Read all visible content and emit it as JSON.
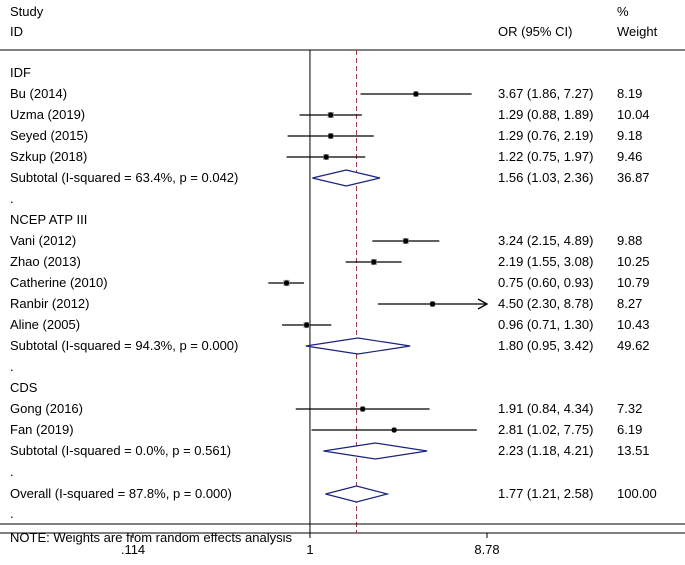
{
  "chart_data": {
    "type": "forest",
    "header": {
      "study_line1": "Study",
      "study_line2": "ID",
      "or_header": "OR (95% CI)",
      "weight_line1": "%",
      "weight_line2": "Weight"
    },
    "x_scale": "log",
    "xlim": [
      0.09,
      12.5
    ],
    "null_line": 1,
    "overall_line": 1.77,
    "x_ticks": [
      {
        "value": 0.114,
        "label": ".114"
      },
      {
        "value": 1,
        "label": "1"
      },
      {
        "value": 8.78,
        "label": "8.78"
      }
    ],
    "rows": [
      {
        "kind": "group",
        "label": "IDF"
      },
      {
        "kind": "study",
        "label": "Bu (2014)",
        "or": 3.67,
        "lo": 1.86,
        "hi": 7.27,
        "weight": 8.19,
        "ci_text": "3.67 (1.86, 7.27)",
        "weight_text": "8.19"
      },
      {
        "kind": "study",
        "label": "Uzma (2019)",
        "or": 1.29,
        "lo": 0.88,
        "hi": 1.89,
        "weight": 10.04,
        "ci_text": "1.29 (0.88, 1.89)",
        "weight_text": "10.04"
      },
      {
        "kind": "study",
        "label": "Seyed (2015)",
        "or": 1.29,
        "lo": 0.76,
        "hi": 2.19,
        "weight": 9.18,
        "ci_text": "1.29 (0.76, 2.19)",
        "weight_text": "9.18"
      },
      {
        "kind": "study",
        "label": "Szkup (2018)",
        "or": 1.22,
        "lo": 0.75,
        "hi": 1.97,
        "weight": 9.46,
        "ci_text": "1.22 (0.75, 1.97)",
        "weight_text": "9.46"
      },
      {
        "kind": "subtotal",
        "label": "Subtotal  (I-squared = 63.4%, p = 0.042)",
        "or": 1.56,
        "lo": 1.03,
        "hi": 2.36,
        "ci_text": "1.56 (1.03, 2.36)",
        "weight_text": "36.87"
      },
      {
        "kind": "dot",
        "label": "."
      },
      {
        "kind": "group",
        "label": "NCEP ATP III"
      },
      {
        "kind": "study",
        "label": "Vani (2012)",
        "or": 3.24,
        "lo": 2.15,
        "hi": 4.89,
        "weight": 9.88,
        "ci_text": "3.24 (2.15, 4.89)",
        "weight_text": "9.88"
      },
      {
        "kind": "study",
        "label": "Zhao (2013)",
        "or": 2.19,
        "lo": 1.55,
        "hi": 3.08,
        "weight": 10.25,
        "ci_text": "2.19 (1.55, 3.08)",
        "weight_text": "10.25"
      },
      {
        "kind": "study",
        "label": "Catherine (2010)",
        "or": 0.75,
        "lo": 0.6,
        "hi": 0.93,
        "weight": 10.79,
        "ci_text": "0.75 (0.60, 0.93)",
        "weight_text": "10.79"
      },
      {
        "kind": "study",
        "label": "Ranbir (2012)",
        "or": 4.5,
        "lo": 2.3,
        "hi": 8.78,
        "weight": 8.27,
        "ci_text": "4.50 (2.30, 8.78)",
        "weight_text": "8.27",
        "arrow": true
      },
      {
        "kind": "study",
        "label": "Aline (2005)",
        "or": 0.96,
        "lo": 0.71,
        "hi": 1.3,
        "weight": 10.43,
        "ci_text": "0.96 (0.71, 1.30)",
        "weight_text": "10.43"
      },
      {
        "kind": "subtotal",
        "label": "Subtotal  (I-squared = 94.3%, p = 0.000)",
        "or": 1.8,
        "lo": 0.95,
        "hi": 3.42,
        "ci_text": "1.80 (0.95, 3.42)",
        "weight_text": "49.62"
      },
      {
        "kind": "dot",
        "label": "."
      },
      {
        "kind": "group",
        "label": "CDS"
      },
      {
        "kind": "study",
        "label": "Gong (2016)",
        "or": 1.91,
        "lo": 0.84,
        "hi": 4.34,
        "weight": 7.32,
        "ci_text": "1.91 (0.84, 4.34)",
        "weight_text": "7.32"
      },
      {
        "kind": "study",
        "label": "Fan (2019)",
        "or": 2.81,
        "lo": 1.02,
        "hi": 7.75,
        "weight": 6.19,
        "ci_text": "2.81 (1.02, 7.75)",
        "weight_text": "6.19"
      },
      {
        "kind": "subtotal",
        "label": "Subtotal  (I-squared = 0.0%, p = 0.561)",
        "or": 2.23,
        "lo": 1.18,
        "hi": 4.21,
        "ci_text": "2.23 (1.18, 4.21)",
        "weight_text": "13.51"
      },
      {
        "kind": "dot",
        "label": "."
      },
      {
        "kind": "overall",
        "label": "Overall  (I-squared = 87.8%, p = 0.000)",
        "or": 1.77,
        "lo": 1.21,
        "hi": 2.58,
        "ci_text": "1.77 (1.21, 2.58)",
        "weight_text": "100.00"
      },
      {
        "kind": "dot",
        "label": "."
      },
      {
        "kind": "note",
        "label": "NOTE: Weights are from random effects analysis"
      }
    ],
    "colors": {
      "line": "#000000",
      "diamond": "#1a237e",
      "overall_line": "#a0323c",
      "box": "#9e9e9e"
    }
  }
}
